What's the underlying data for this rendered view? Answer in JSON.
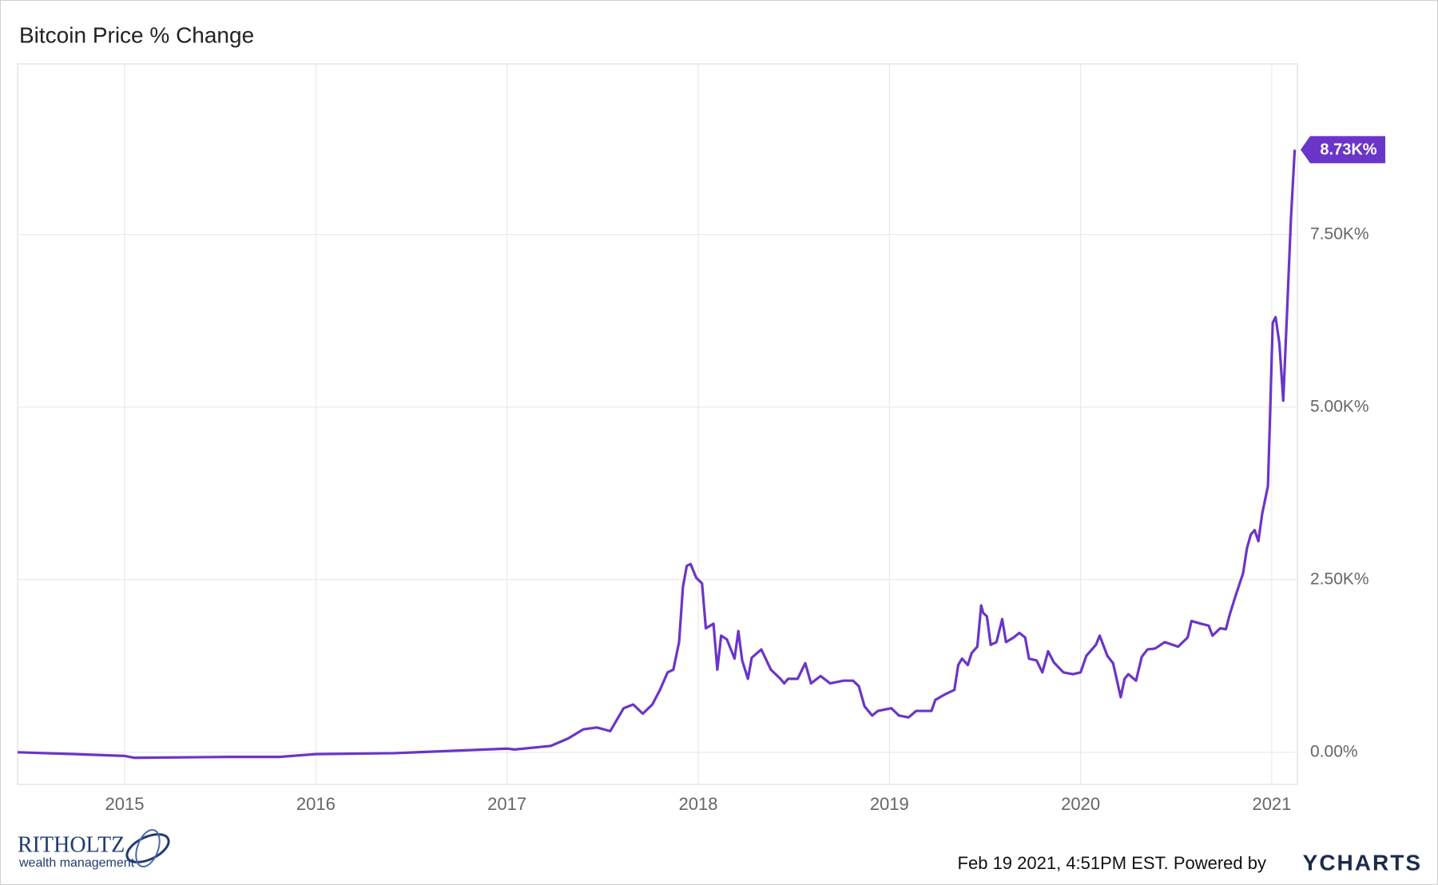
{
  "chart_data": {
    "type": "line",
    "title": "Bitcoin Price % Change",
    "color": "#6a35c9",
    "x": [
      2014.44,
      2014.74,
      2015.0,
      2015.05,
      2015.55,
      2015.81,
      2016.0,
      2016.41,
      2017.0,
      2017.04,
      2017.23,
      2017.32,
      2017.4,
      2017.47,
      2017.54,
      2017.61,
      2017.66,
      2017.71,
      2017.76,
      2017.8,
      2017.84,
      2017.87,
      2017.9,
      2017.92,
      2017.94,
      2017.96,
      2017.99,
      2018.02,
      2018.04,
      2018.08,
      2018.1,
      2018.12,
      2018.15,
      2018.19,
      2018.21,
      2018.23,
      2018.26,
      2018.28,
      2018.33,
      2018.38,
      2018.43,
      2018.45,
      2018.47,
      2018.52,
      2018.56,
      2018.59,
      2018.64,
      2018.69,
      2018.76,
      2018.81,
      2018.84,
      2018.87,
      2018.91,
      2018.94,
      2019.01,
      2019.05,
      2019.1,
      2019.14,
      2019.22,
      2019.24,
      2019.29,
      2019.34,
      2019.36,
      2019.38,
      2019.41,
      2019.43,
      2019.46,
      2019.48,
      2019.49,
      2019.51,
      2019.53,
      2019.56,
      2019.59,
      2019.61,
      2019.65,
      2019.68,
      2019.71,
      2019.73,
      2019.77,
      2019.8,
      2019.83,
      2019.86,
      2019.91,
      2019.96,
      2020.0,
      2020.03,
      2020.08,
      2020.1,
      2020.14,
      2020.17,
      2020.21,
      2020.23,
      2020.25,
      2020.29,
      2020.32,
      2020.35,
      2020.39,
      2020.44,
      2020.51,
      2020.56,
      2020.58,
      2020.63,
      2020.67,
      2020.69,
      2020.73,
      2020.76,
      2020.78,
      2020.81,
      2020.85,
      2020.87,
      2020.89,
      2020.91,
      2020.93,
      2020.95,
      2020.98,
      2020.99,
      2021.005,
      2021.02,
      2021.04,
      2021.06,
      2021.08,
      2021.1,
      2021.12
    ],
    "values": [
      0,
      -27,
      -53,
      -80,
      -67,
      -67,
      -27,
      -13,
      53,
      40,
      93,
      200,
      333,
      359,
      306,
      638,
      692,
      559,
      692,
      904,
      1157,
      1197,
      1596,
      2394,
      2700,
      2727,
      2527,
      2447,
      1796,
      1862,
      1197,
      1689,
      1636,
      1357,
      1756,
      1330,
      1064,
      1370,
      1490,
      1197,
      1064,
      998,
      1064,
      1064,
      1290,
      998,
      1104,
      998,
      1037,
      1037,
      958,
      665,
      532,
      599,
      638,
      532,
      505,
      599,
      599,
      758,
      838,
      904,
      1264,
      1357,
      1264,
      1436,
      1530,
      2128,
      2022,
      1968,
      1556,
      1596,
      1929,
      1596,
      1663,
      1729,
      1663,
      1357,
      1330,
      1157,
      1463,
      1303,
      1157,
      1131,
      1157,
      1397,
      1556,
      1689,
      1397,
      1290,
      798,
      1064,
      1131,
      1037,
      1383,
      1490,
      1503,
      1596,
      1530,
      1663,
      1902,
      1862,
      1835,
      1689,
      1796,
      1782,
      1995,
      2261,
      2594,
      2953,
      3152,
      3219,
      3059,
      3458,
      3857,
      4788,
      6224,
      6304,
      5919,
      5094,
      6384,
      7714,
      8730
    ],
    "last_value_label": "8.73K%",
    "xlim": [
      2014.44,
      2021.134
    ],
    "ylim": [
      -465,
      9973
    ],
    "xticks": [
      2015,
      2016,
      2017,
      2018,
      2019,
      2020,
      2021
    ],
    "yticks": [
      {
        "value": 0,
        "label": "0.00%"
      },
      {
        "value": 2500,
        "label": "2.50K%"
      },
      {
        "value": 5000,
        "label": "5.00K%"
      },
      {
        "value": 7500,
        "label": "7.50K%"
      }
    ],
    "grid": true
  },
  "footer": {
    "logo_name": "RITHOLTZ",
    "logo_tagline": "wealth management",
    "timestamp": "Feb 19 2021, 4:51PM EST. Powered by",
    "brand": "YCHARTS"
  }
}
